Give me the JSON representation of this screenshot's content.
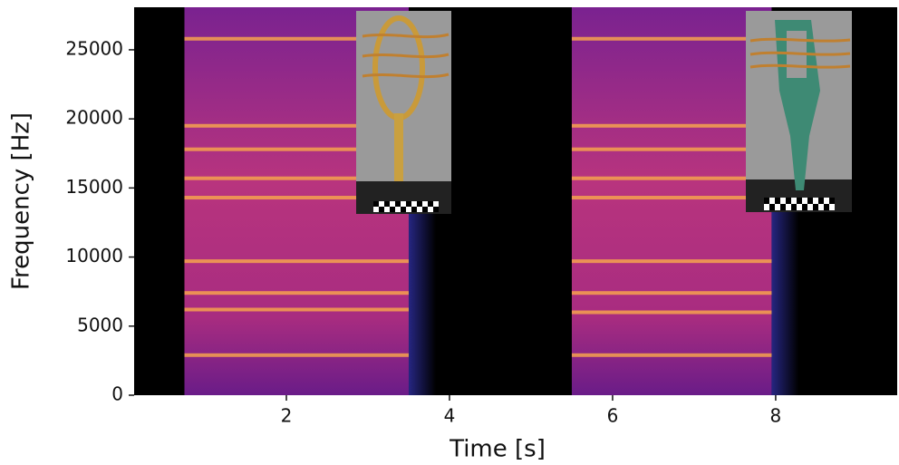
{
  "chart_data": {
    "type": "spectrogram",
    "x_label": "Time [s]",
    "y_label": "Frequency [Hz]",
    "xlim": [
      0.133,
      9.49
    ],
    "ylim": [
      0,
      28080
    ],
    "xticks": [
      2,
      4,
      6,
      8
    ],
    "yticks": [
      0,
      5000,
      10000,
      15000,
      20000,
      25000
    ],
    "background": "#000000",
    "color": "#8a2a8e",
    "band_color": "#f6a24e",
    "events": [
      {
        "start": 0.75,
        "end": 3.5,
        "bands": [
          2900,
          6200,
          7400,
          9700,
          14300,
          15700,
          17800,
          19500,
          25800
        ]
      },
      {
        "start": 5.5,
        "end": 7.95,
        "bands": [
          2900,
          6000,
          7400,
          9700,
          14300,
          15700,
          17800,
          19500,
          25800
        ]
      }
    ]
  }
}
